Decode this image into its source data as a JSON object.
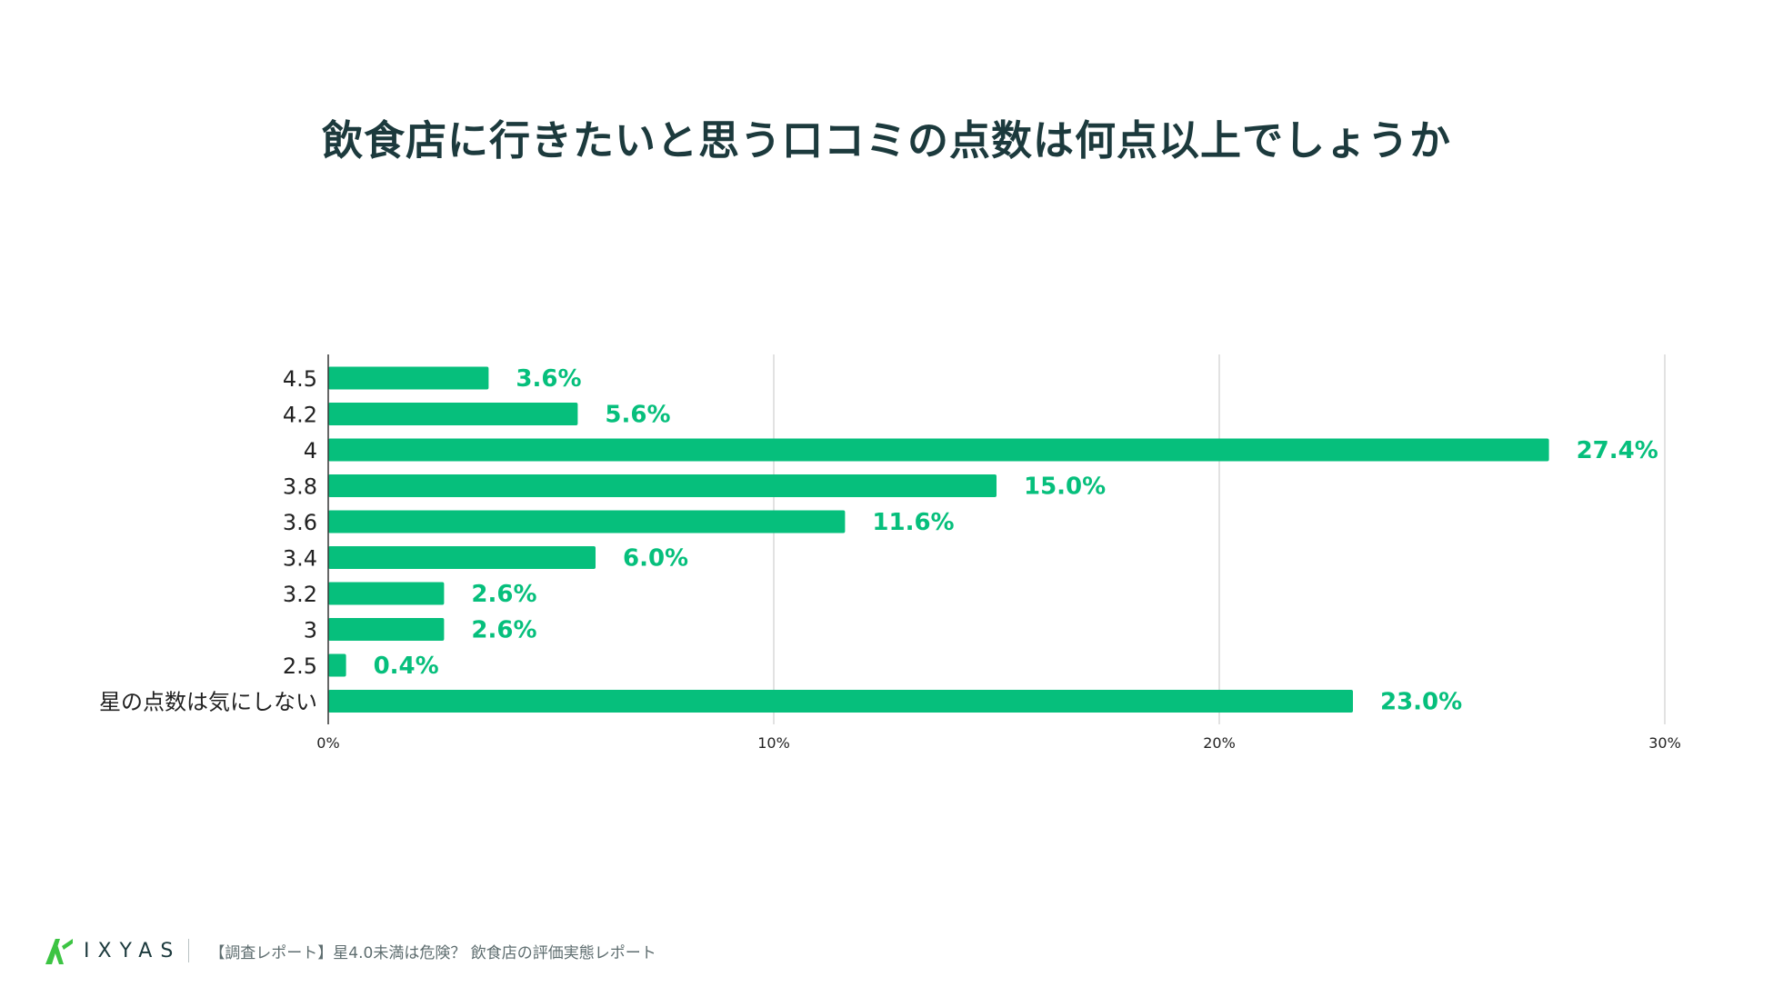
{
  "title": "飲食店に行きたいと思う口コミの点数は何点以上でしょうか",
  "colors": {
    "bar": "#06bf7c",
    "label": "#06bf7c",
    "grid": "#d9d9d9",
    "axis": "#333333",
    "title": "#1c3a3d",
    "logo_accent": "#3cc443"
  },
  "chart_data": {
    "type": "bar",
    "orientation": "horizontal",
    "title": "飲食店に行きたいと思う口コミの点数は何点以上でしょうか",
    "categories": [
      "4.5",
      "4.2",
      "4",
      "3.8",
      "3.6",
      "3.4",
      "3.2",
      "3",
      "2.5",
      "星の点数は気にしない"
    ],
    "values": [
      3.6,
      5.6,
      27.4,
      15.0,
      11.6,
      6.0,
      2.6,
      2.6,
      0.4,
      23.0
    ],
    "value_labels": [
      "3.6%",
      "5.6%",
      "27.4%",
      "15.0%",
      "11.6%",
      "6.0%",
      "2.6%",
      "2.6%",
      "0.4%",
      "23.0%"
    ],
    "xlim": [
      0,
      30
    ],
    "xticks": [
      0,
      10,
      20,
      30
    ],
    "xtick_labels": [
      "0%",
      "10%",
      "20%",
      "30%"
    ],
    "xlabel": "",
    "ylabel": "",
    "grid": true
  },
  "footer": {
    "logo_text": "IXYAS",
    "caption": "【調査レポート】星4.0未満は危険？ 飲食店の評価実態レポート"
  }
}
